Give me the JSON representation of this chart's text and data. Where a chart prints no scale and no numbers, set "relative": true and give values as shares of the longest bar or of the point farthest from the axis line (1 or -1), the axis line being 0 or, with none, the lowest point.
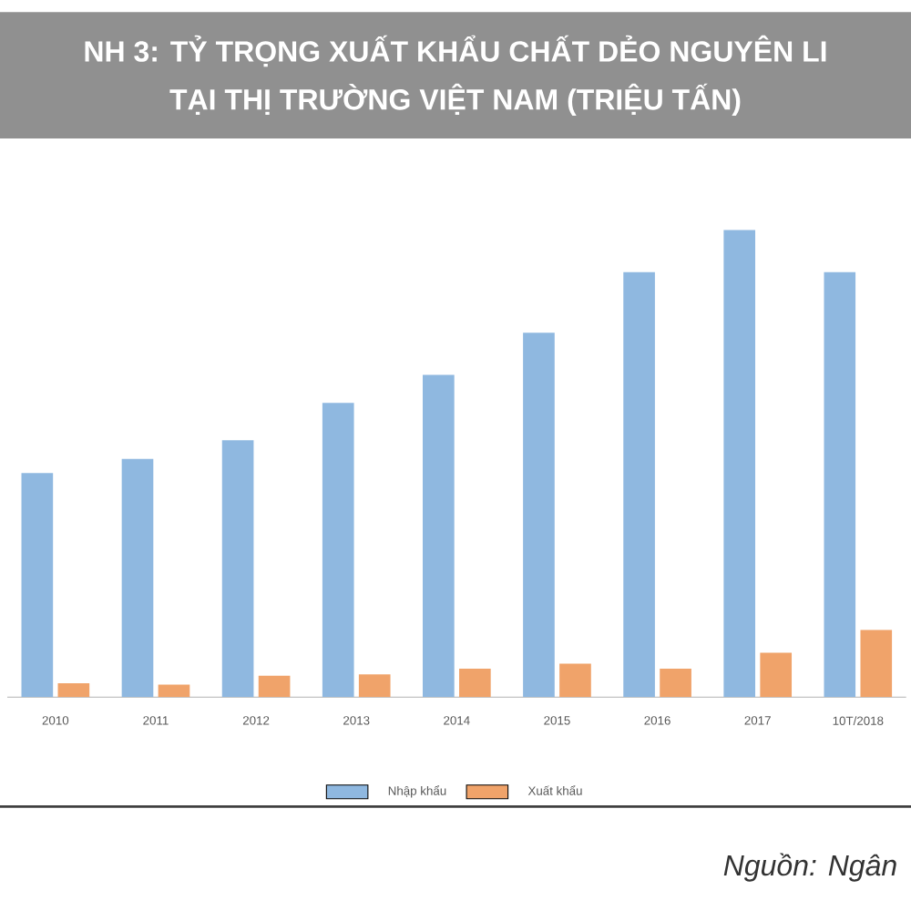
{
  "chart_data": {
    "type": "bar",
    "title": "NH 3: TỶ TRỌNG XUẤT KHẨU CHẤT DẺO NGUYÊN LI",
    "subtitle": "TẠI THỊ TRƯỜNG VIỆT NAM (TRIỆU TẤN)",
    "categories": [
      "2010",
      "2011",
      "2012",
      "2013",
      "2014",
      "2015",
      "2016",
      "2017",
      "10T/2018"
    ],
    "relative": true,
    "series": [
      {
        "name": "Nhập khẩu",
        "color": "#8fb8e0",
        "values": [
          0.48,
          0.51,
          0.55,
          0.63,
          0.69,
          0.78,
          0.91,
          1,
          0.91
        ]
      },
      {
        "name": "Xuất khẩu",
        "color": "#f0a36a",
        "values": [
          0.03,
          0.027,
          0.046,
          0.049,
          0.061,
          0.072,
          0.061,
          0.095,
          0.144
        ]
      }
    ],
    "legend": "bottom",
    "annotations": [
      "Nguồn: Ngân"
    ]
  }
}
